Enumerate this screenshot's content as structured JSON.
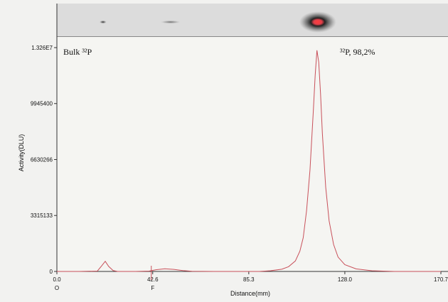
{
  "chart_data": {
    "type": "line",
    "title": "",
    "xlabel": "Distance(mm)",
    "ylabel": "Activity(DLU)",
    "xlim": [
      0.0,
      170.7
    ],
    "ylim": [
      0,
      13260000
    ],
    "x_ticks": [
      "0.0",
      "42.6",
      "85.3",
      "128.0",
      "170.7"
    ],
    "x_tick_values": [
      0.0,
      42.6,
      85.3,
      128.0,
      170.7
    ],
    "y_ticks": [
      "0",
      "3315133",
      "6630266",
      "9945400",
      "1.326E7"
    ],
    "y_tick_values": [
      0,
      3315133,
      6630266,
      9945400,
      13260000
    ],
    "markers": [
      {
        "label": "O",
        "x": 0.0
      },
      {
        "label": "F",
        "x": 42.6
      }
    ],
    "annotations": {
      "sample_label": "Bulk ³²P",
      "peak_label": "³²P, 98,2%"
    },
    "series": [
      {
        "color": "#c8505a",
        "x": [
          0,
          10,
          18,
          20,
          21.5,
          23,
          25,
          27,
          35,
          41,
          44,
          48,
          52,
          56,
          60,
          70,
          80,
          90,
          95,
          100,
          103,
          106,
          108,
          109.5,
          111,
          112.5,
          114,
          114.8,
          115.6,
          116.4,
          117.2,
          118,
          119.5,
          121,
          123,
          125,
          128,
          133,
          140,
          150,
          160,
          170.7
        ],
        "y": [
          0,
          0,
          20000,
          350000,
          600000,
          300000,
          50000,
          0,
          0,
          20000,
          100000,
          160000,
          120000,
          50000,
          10000,
          0,
          0,
          0,
          40000,
          130000,
          280000,
          620000,
          1200000,
          2000000,
          3600000,
          6000000,
          9500000,
          11600000,
          13100000,
          12400000,
          10500000,
          8200000,
          5000000,
          3000000,
          1600000,
          850000,
          400000,
          150000,
          40000,
          0,
          0,
          0
        ]
      }
    ]
  },
  "tlc_image": {
    "spots": [
      {
        "x": 20.5,
        "intensity": 0.6
      },
      {
        "x": 50.5,
        "intensity": 0.25
      },
      {
        "x": 116.0,
        "intensity": 1.0
      }
    ]
  }
}
